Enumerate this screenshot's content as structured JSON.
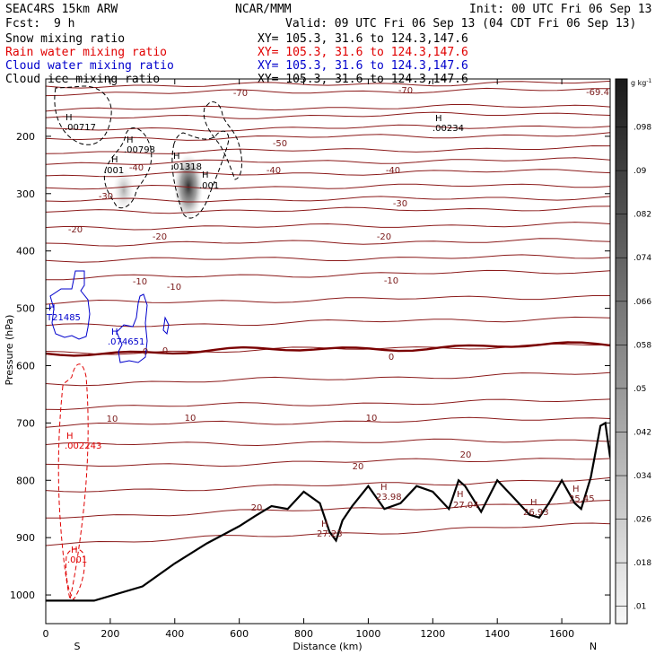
{
  "header": {
    "model": "SEAC4RS 15km ARW",
    "org": "NCAR/MMM",
    "init": "Init: 00 UTC Fri 06 Sep 13",
    "fcst_label": "Fcst:",
    "fcst_value": "9 h",
    "valid": "Valid: 09 UTC Fri 06 Sep 13 (04 CDT Fri 06 Sep 13)"
  },
  "fields": [
    {
      "name": "Snow mixing ratio",
      "xy": "XY= 105.3, 31.6 to 124.3,147.6",
      "color": "#000000"
    },
    {
      "name": "Rain water mixing ratio",
      "xy": "XY= 105.3, 31.6 to 124.3,147.6",
      "color": "#e00000"
    },
    {
      "name": "Cloud water mixing ratio",
      "xy": "XY= 105.3, 31.6 to 124.3,147.6",
      "color": "#0000cc"
    },
    {
      "name": "Cloud ice mixing ratio",
      "xy": "XY= 105.3, 31.6 to 124.3,147.6",
      "color": "#000000"
    }
  ],
  "chart_data": {
    "type": "cross-section",
    "xlabel": "Distance (km)",
    "ylabel": "Pressure (hPa)",
    "xlim": [
      0,
      1750
    ],
    "ylim": [
      1050,
      100
    ],
    "x_ticks": [
      0,
      200,
      400,
      600,
      800,
      1000,
      1200,
      1400,
      1600
    ],
    "y_ticks": [
      200,
      300,
      400,
      500,
      600,
      700,
      800,
      900,
      1000
    ],
    "left_end_label": "S",
    "right_end_label": "N",
    "colorbar": {
      "unit": "g kg",
      "unit_exp": "-1",
      "levels": [
        ".098",
        ".09",
        ".082",
        ".074",
        ".066",
        ".058",
        ".05",
        ".042",
        ".034",
        ".026",
        ".018",
        ".01"
      ]
    },
    "temperature_labels": [
      "-70",
      "-70",
      "-69.4",
      "-50",
      "-40",
      "-40",
      "-40",
      "-30",
      "-30",
      "-20",
      "-20",
      "-20",
      "-10",
      "-10",
      "-10",
      "0",
      "0",
      "0",
      "10",
      "10",
      "10",
      "20",
      "20",
      "20"
    ],
    "maxima_labels": [
      ".00717",
      ".00798",
      ".001",
      ".01318",
      ".001",
      ".00234",
      "T21485",
      ".074651",
      ".002243",
      ".001",
      "27.23",
      "23.98",
      "27.04",
      "26.93",
      "25.45"
    ],
    "terrain": {
      "distance_km": [
        0,
        150,
        300,
        400,
        500,
        600,
        650,
        700,
        750,
        800,
        850,
        880,
        900,
        920,
        950,
        1000,
        1050,
        1100,
        1150,
        1200,
        1250,
        1280,
        1300,
        1350,
        1400,
        1450,
        1500,
        1530,
        1560,
        1600,
        1640,
        1660,
        1690,
        1720,
        1735,
        1750
      ],
      "pressure_hpa": [
        1010,
        1010,
        985,
        945,
        910,
        880,
        862,
        845,
        850,
        820,
        840,
        890,
        905,
        870,
        845,
        810,
        850,
        840,
        810,
        820,
        850,
        800,
        810,
        855,
        800,
        830,
        860,
        865,
        840,
        800,
        840,
        850,
        795,
        705,
        700,
        760
      ]
    }
  }
}
